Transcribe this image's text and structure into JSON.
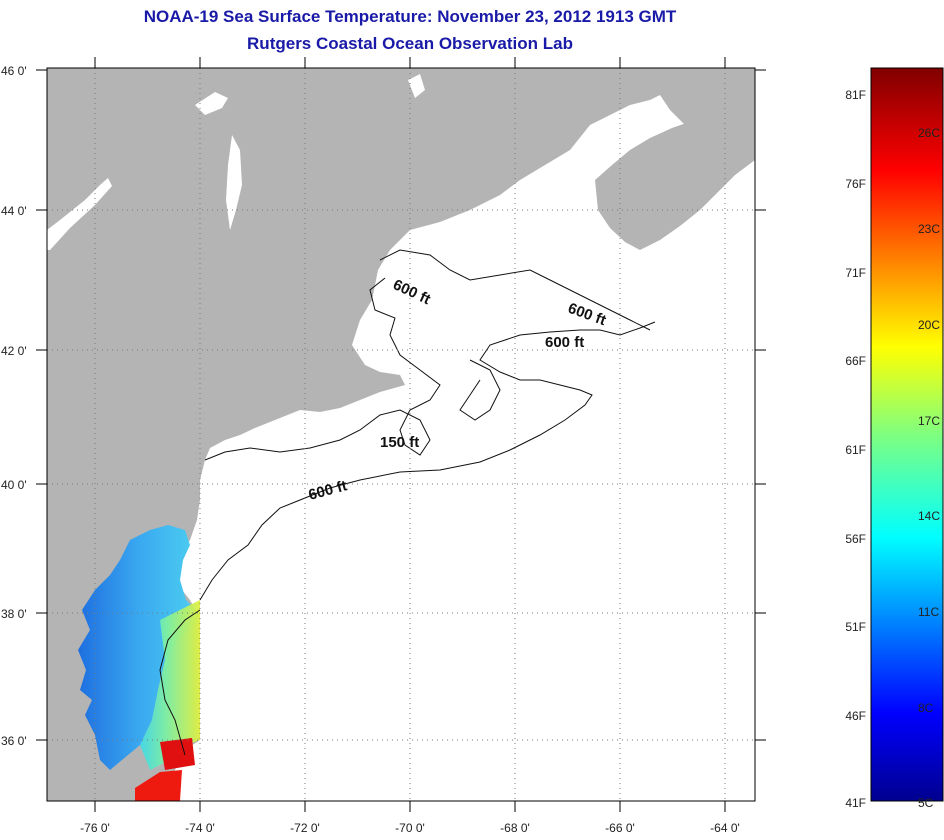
{
  "header": {
    "title": "NOAA-19 Sea Surface Temperature:  November 23, 2012 1913 GMT",
    "subtitle": "Rutgers Coastal Ocean Observation Lab"
  },
  "map": {
    "lon_ticks": [
      "-76 0'",
      "-74 0'",
      "-72 0'",
      "-70 0'",
      "-68 0'",
      "-66 0'",
      "-64 0'"
    ],
    "lat_ticks": [
      "46 0'",
      "44 0'",
      "42 0'",
      "40 0'",
      "38 0'",
      "36 0'"
    ],
    "lon_range": [
      -77,
      -63.5
    ],
    "lat_range": [
      35,
      46
    ],
    "grid": "dotted",
    "contour_labels": {
      "c1": "600 ft",
      "c2": "600 ft",
      "c3": "600 ft",
      "c4": "150 ft",
      "c5": "600 ft"
    },
    "colors": {
      "land": "#b4b4b4",
      "water": "#ffffff",
      "title": "#1a1aa8"
    }
  },
  "colorbar": {
    "fahrenheit": [
      "81F",
      "76F",
      "71F",
      "66F",
      "61F",
      "56F",
      "51F",
      "46F",
      "41F"
    ],
    "celsius": [
      "26C",
      "23C",
      "20C",
      "17C",
      "14C",
      "11C",
      "8C",
      "5C"
    ],
    "colormap": "jet"
  }
}
